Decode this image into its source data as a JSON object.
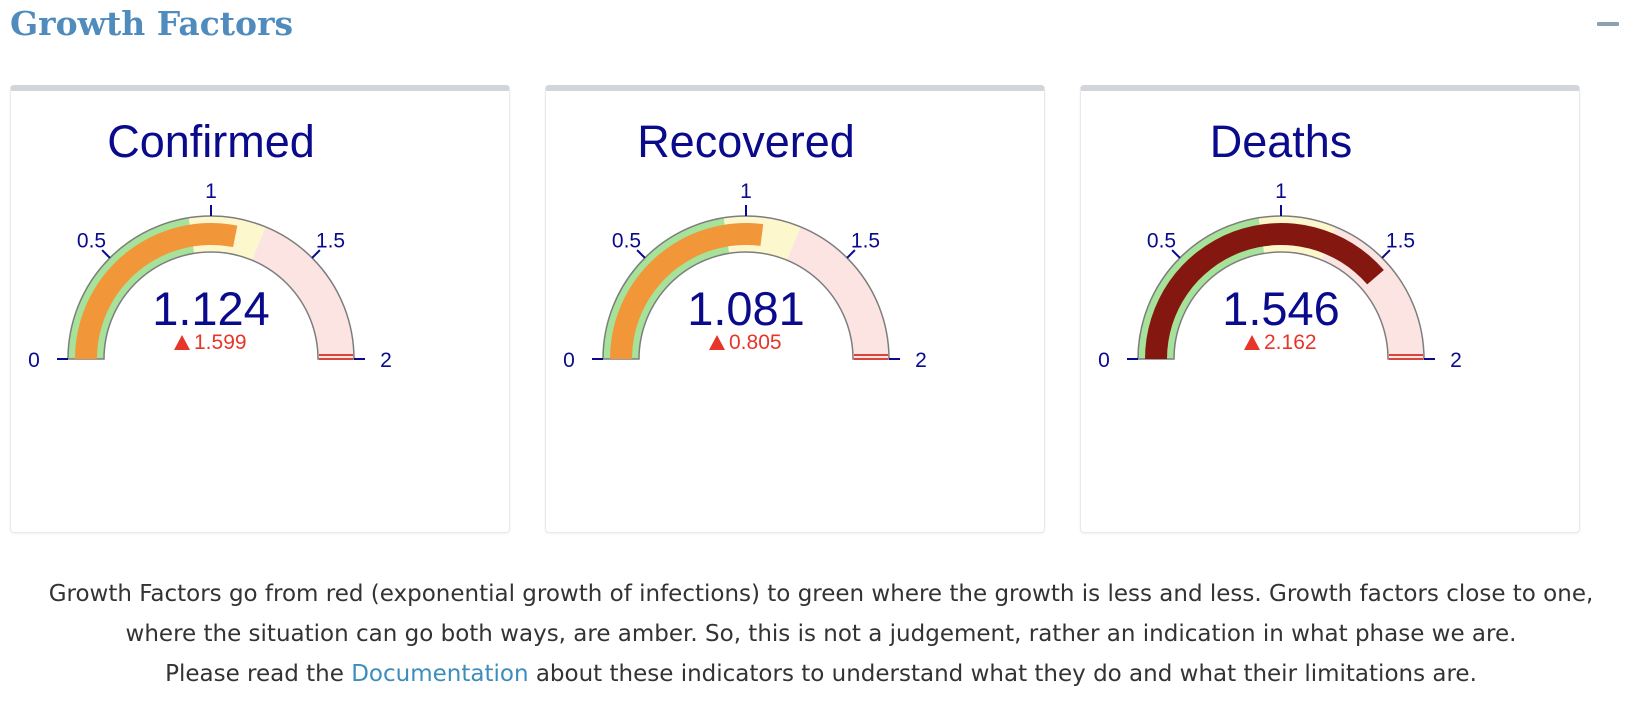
{
  "section": {
    "title": "Growth Factors"
  },
  "colors": {
    "title": "#4f8bbd",
    "label": "#0a0a8c",
    "band_green": "#a6e29a",
    "band_amber": "#fdf7cd",
    "band_red": "#fbe4e1",
    "bar_amber": "#f2963a",
    "bar_dark_red": "#841810",
    "delta_red": "#e8352a",
    "max_marker": "#d9443b"
  },
  "chart_data": [
    {
      "type": "gauge",
      "title": "Confirmed",
      "value": 1.124,
      "value_label": "1.124",
      "delta_label": "1.599",
      "delta_direction": "up",
      "range": [
        0,
        2
      ],
      "ticks": [
        "0",
        "0.5",
        "1",
        "1.5",
        "2"
      ],
      "tick_values": [
        0,
        0.5,
        1,
        1.5,
        2
      ],
      "bands": [
        {
          "from": 0,
          "to": 0.9,
          "color": "#a6e29a"
        },
        {
          "from": 0.9,
          "to": 1.25,
          "color": "#fdf7cd"
        },
        {
          "from": 1.25,
          "to": 2,
          "color": "#fbe4e1"
        }
      ],
      "bar_color": "#f2963a"
    },
    {
      "type": "gauge",
      "title": "Recovered",
      "value": 1.081,
      "value_label": "1.081",
      "delta_label": "0.805",
      "delta_direction": "up",
      "range": [
        0,
        2
      ],
      "ticks": [
        "0",
        "0.5",
        "1",
        "1.5",
        "2"
      ],
      "tick_values": [
        0,
        0.5,
        1,
        1.5,
        2
      ],
      "bands": [
        {
          "from": 0,
          "to": 0.9,
          "color": "#a6e29a"
        },
        {
          "from": 0.9,
          "to": 1.25,
          "color": "#fdf7cd"
        },
        {
          "from": 1.25,
          "to": 2,
          "color": "#fbe4e1"
        }
      ],
      "bar_color": "#f2963a"
    },
    {
      "type": "gauge",
      "title": "Deaths",
      "value": 1.546,
      "value_label": "1.546",
      "delta_label": "2.162",
      "delta_direction": "up",
      "range": [
        0,
        2
      ],
      "ticks": [
        "0",
        "0.5",
        "1",
        "1.5",
        "2"
      ],
      "tick_values": [
        0,
        0.5,
        1,
        1.5,
        2
      ],
      "bands": [
        {
          "from": 0,
          "to": 0.9,
          "color": "#a6e29a"
        },
        {
          "from": 0.9,
          "to": 1.25,
          "color": "#fdf7cd"
        },
        {
          "from": 1.25,
          "to": 2,
          "color": "#fbe4e1"
        }
      ],
      "bar_color": "#841810"
    }
  ],
  "description": {
    "line1": "Growth Factors go from red (exponential growth of infections) to green where the growth is less and less. Growth factors close to one,",
    "line2": "where the situation can go both ways, are amber. So, this is not a judgement, rather an indication in what phase we are.",
    "line3_before": "Please read the ",
    "link_text": "Documentation",
    "line3_after": " about these indicators to understand what they do and what their limitations are."
  }
}
